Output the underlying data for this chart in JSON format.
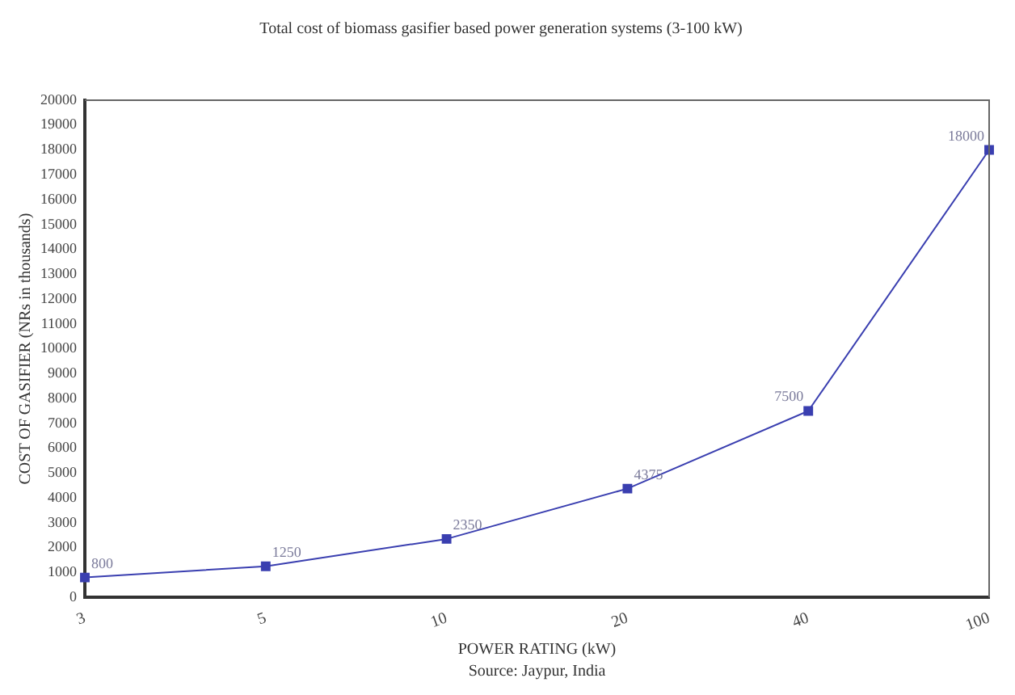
{
  "chart_data": {
    "type": "line",
    "title": "Total cost of biomass gasifier based power generation systems (3-100 kW)",
    "xlabel": "POWER RATING (kW)",
    "ylabel": "COST OF GASIFIER (NRs in thousands)",
    "annotations": [
      "Source: Jaypur, India"
    ],
    "categories": [
      "3",
      "5",
      "10",
      "20",
      "40",
      "100"
    ],
    "series": [
      {
        "color": "#3a3fb0",
        "values": [
          800,
          1250,
          2350,
          4375,
          7500,
          18000
        ]
      }
    ],
    "ylim": [
      0,
      20000
    ],
    "yticks": [
      0,
      1000,
      2000,
      3000,
      4000,
      5000,
      6000,
      7000,
      8000,
      9000,
      10000,
      11000,
      12000,
      13000,
      14000,
      15000,
      16000,
      17000,
      18000,
      19000,
      20000
    ],
    "marker": "square",
    "data_labels": true,
    "grid": false,
    "legend": false
  }
}
